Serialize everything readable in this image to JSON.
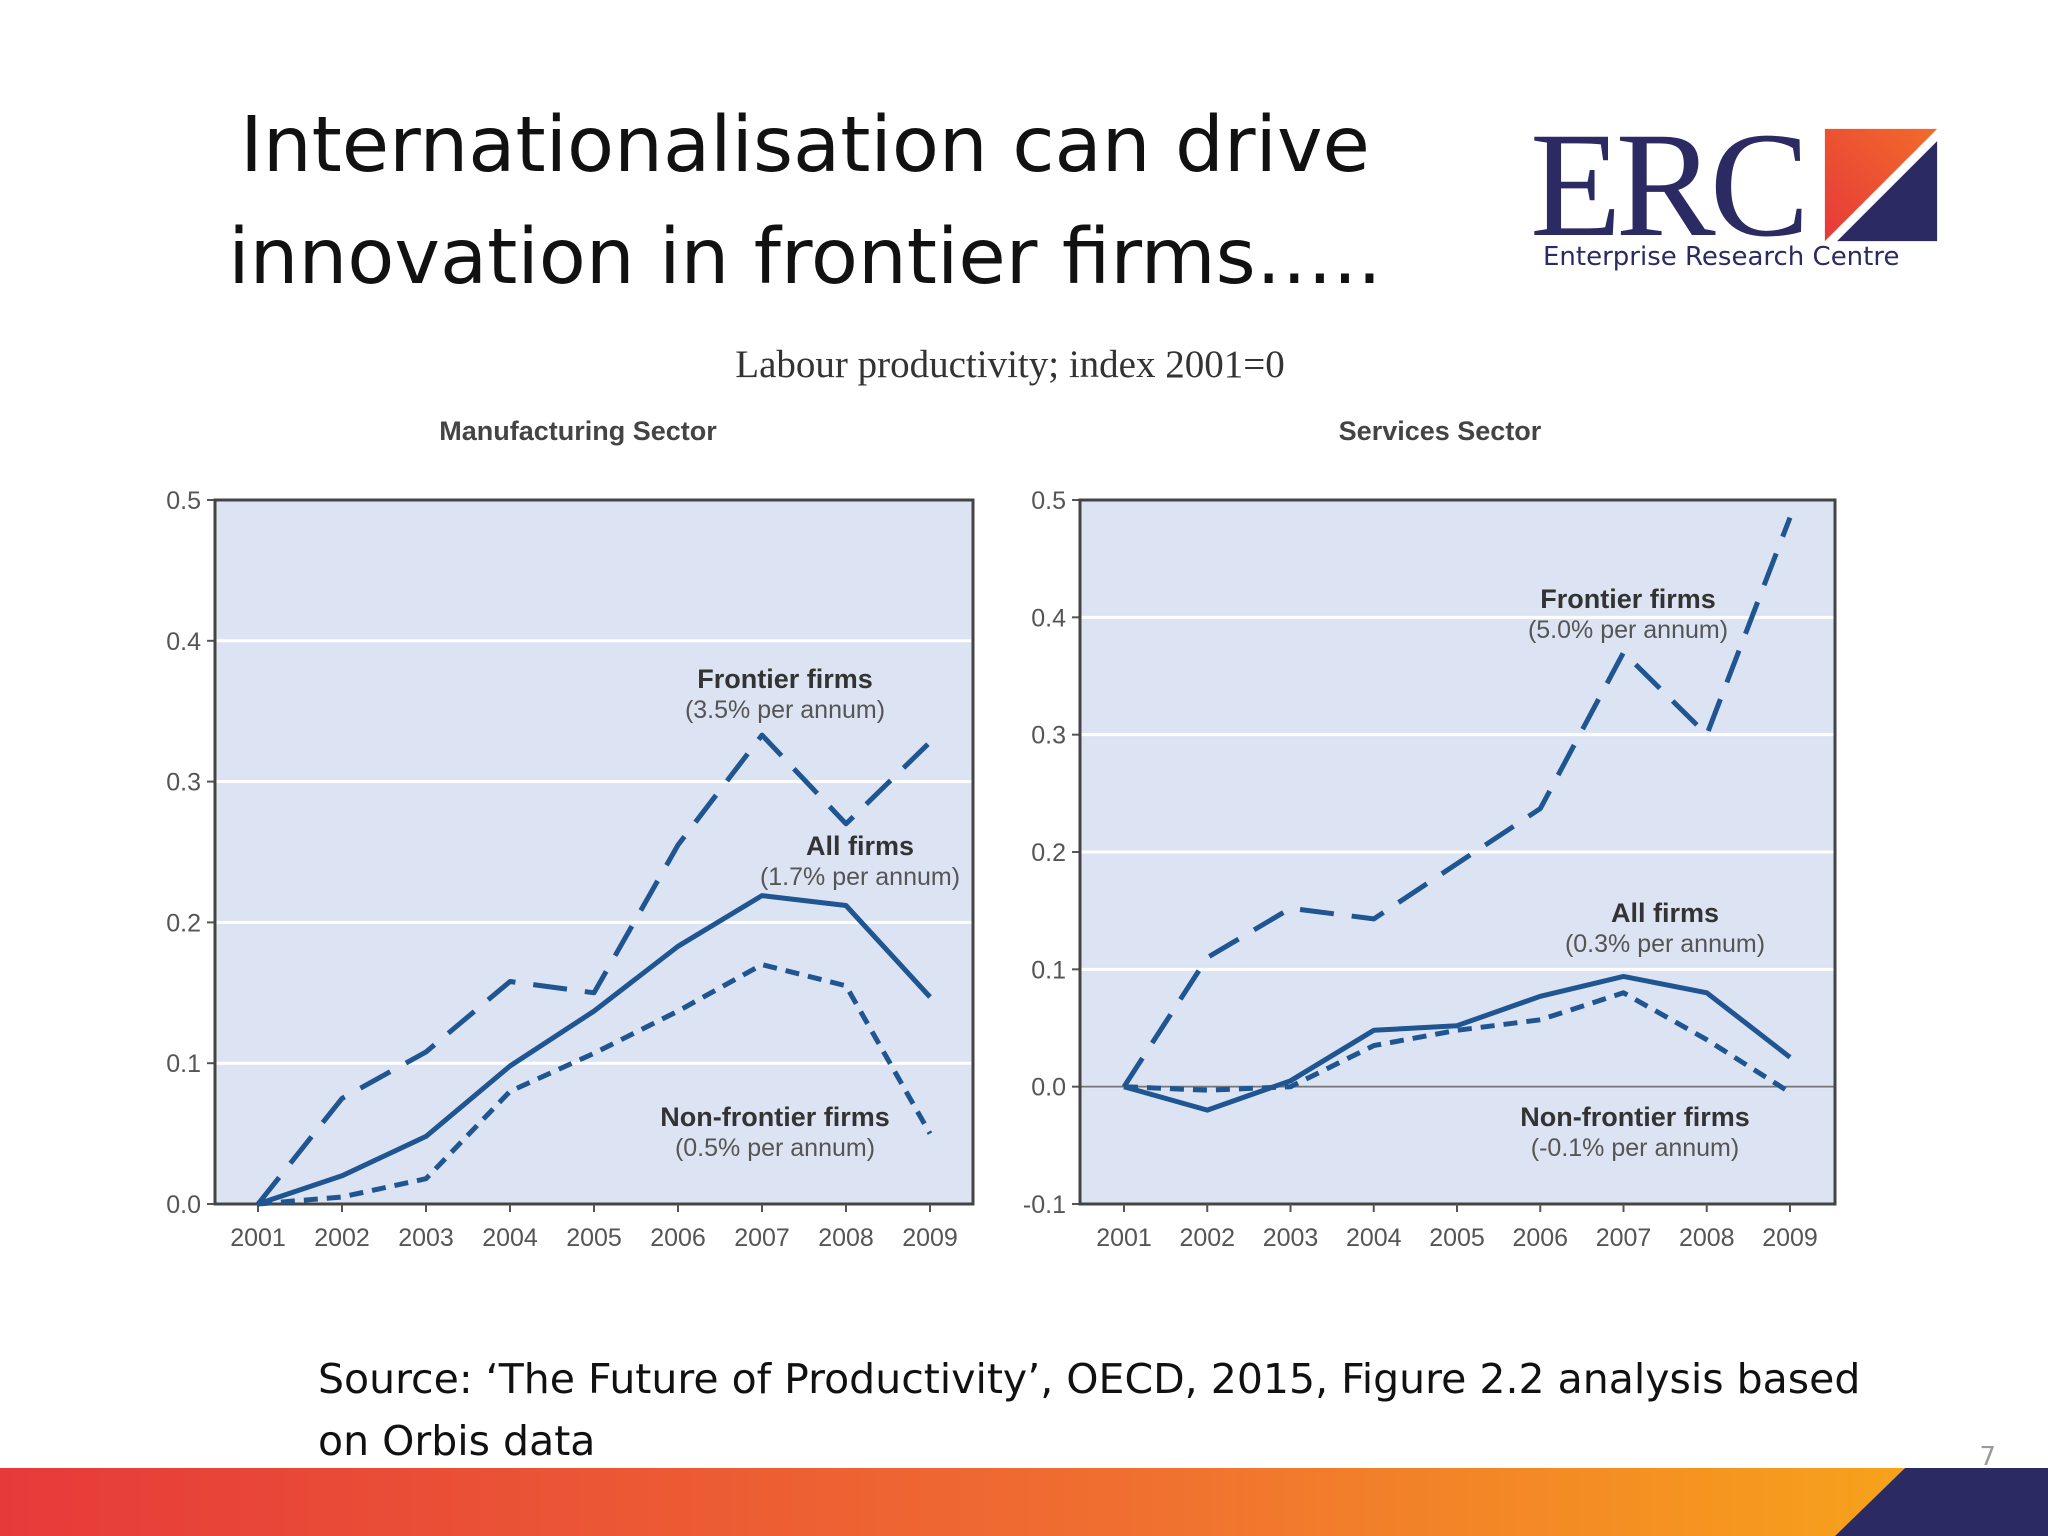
{
  "slide": {
    "title_line1": "Internationalisation can drive",
    "title_line2": "innovation in frontier firms…..",
    "figure_title": "Labour productivity; index 2001=0",
    "source_line1": "Source: ‘The Future of Productivity’, OECD, 2015, Figure 2.2 analysis based",
    "source_line2": "on Orbis data",
    "page_number": "7"
  },
  "logo": {
    "letters": "ERC",
    "subtitle": "Enterprise Research Centre",
    "colors": {
      "navy": "#2b2a63",
      "orange": "#f26b2a",
      "red": "#e63a3a"
    }
  },
  "colors": {
    "plot_bg": "#dce3f2",
    "line": "#1f5591",
    "bar_gradient": [
      "#e63a3a",
      "#f07030",
      "#f7a21b"
    ],
    "bar_navy": "#2b2a63"
  },
  "chart_data": [
    {
      "type": "line",
      "title": "Manufacturing Sector",
      "x": [
        2001,
        2002,
        2003,
        2004,
        2005,
        2006,
        2007,
        2008,
        2009
      ],
      "ylim": [
        0,
        0.5
      ],
      "yticks": [
        "0.0",
        "0.1",
        "0.2",
        "0.3",
        "0.4",
        "0.5"
      ],
      "grid": true,
      "series": [
        {
          "name": "Frontier firms",
          "note": "(3.5% per annum)",
          "style": "long-dash",
          "values": [
            0.0,
            0.075,
            0.108,
            0.158,
            0.15,
            0.255,
            0.333,
            0.27,
            0.328
          ]
        },
        {
          "name": "All firms",
          "note": "(1.7% per annum)",
          "style": "solid",
          "values": [
            0.0,
            0.02,
            0.048,
            0.098,
            0.137,
            0.183,
            0.219,
            0.212,
            0.147
          ]
        },
        {
          "name": "Non-frontier firms",
          "note": "(0.5% per annum)",
          "style": "short-dash",
          "values": [
            0.0,
            0.005,
            0.018,
            0.08,
            0.107,
            0.137,
            0.17,
            0.155,
            0.05
          ]
        }
      ]
    },
    {
      "type": "line",
      "title": "Services Sector",
      "x": [
        2001,
        2002,
        2003,
        2004,
        2005,
        2006,
        2007,
        2008,
        2009
      ],
      "ylim": [
        -0.1,
        0.5
      ],
      "yticks": [
        "-0.1",
        "0.0",
        "0.1",
        "0.2",
        "0.3",
        "0.4",
        "0.5"
      ],
      "grid": true,
      "series": [
        {
          "name": "Frontier firms",
          "note": "(5.0% per annum)",
          "style": "long-dash",
          "values": [
            0.0,
            0.11,
            0.152,
            0.143,
            0.19,
            0.237,
            0.37,
            0.3,
            0.485
          ]
        },
        {
          "name": "All firms",
          "note": "(0.3% per annum)",
          "style": "solid",
          "values": [
            0.0,
            -0.02,
            0.005,
            0.048,
            0.052,
            0.077,
            0.094,
            0.08,
            0.025
          ]
        },
        {
          "name": "Non-frontier firms",
          "note": "(-0.1% per annum)",
          "style": "short-dash",
          "values": [
            0.0,
            -0.003,
            0.0,
            0.035,
            0.048,
            0.057,
            0.08,
            0.04,
            -0.005
          ]
        }
      ]
    }
  ]
}
